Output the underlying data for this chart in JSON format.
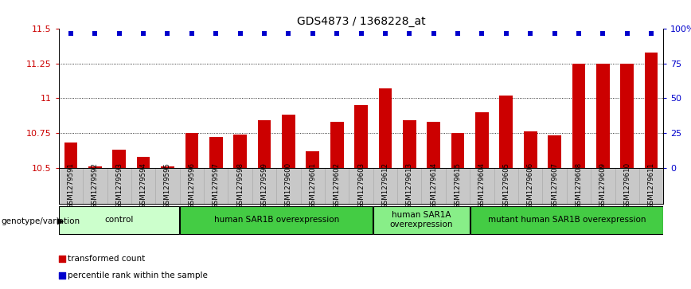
{
  "title": "GDS4873 / 1368228_at",
  "samples": [
    "GSM1279591",
    "GSM1279592",
    "GSM1279593",
    "GSM1279594",
    "GSM1279595",
    "GSM1279596",
    "GSM1279597",
    "GSM1279598",
    "GSM1279599",
    "GSM1279600",
    "GSM1279601",
    "GSM1279602",
    "GSM1279603",
    "GSM1279612",
    "GSM1279613",
    "GSM1279614",
    "GSM1279615",
    "GSM1279604",
    "GSM1279605",
    "GSM1279606",
    "GSM1279607",
    "GSM1279608",
    "GSM1279609",
    "GSM1279610",
    "GSM1279611"
  ],
  "bar_values": [
    10.68,
    10.51,
    10.63,
    10.58,
    10.51,
    10.75,
    10.72,
    10.74,
    10.84,
    10.88,
    10.62,
    10.83,
    10.95,
    11.07,
    10.84,
    10.83,
    10.75,
    10.9,
    11.02,
    10.76,
    10.73,
    11.25,
    11.25,
    11.25,
    11.33
  ],
  "percentile_values": [
    97,
    97,
    97,
    97,
    97,
    97,
    97,
    97,
    97,
    97,
    97,
    97,
    97,
    97,
    97,
    97,
    97,
    97,
    97,
    97,
    97,
    97,
    97,
    97,
    97
  ],
  "groups": [
    {
      "label": "control",
      "start": 0,
      "end": 5,
      "color": "#ccffcc"
    },
    {
      "label": "human SAR1B overexpression",
      "start": 5,
      "end": 13,
      "color": "#44cc44"
    },
    {
      "label": "human SAR1A\noverexpression",
      "start": 13,
      "end": 17,
      "color": "#88ee88"
    },
    {
      "label": "mutant human SAR1B overexpression",
      "start": 17,
      "end": 25,
      "color": "#44cc44"
    }
  ],
  "ylim": [
    10.5,
    11.5
  ],
  "yticks": [
    10.5,
    10.75,
    11.0,
    11.25,
    11.5
  ],
  "ytick_labels": [
    "10.5",
    "10.75",
    "11",
    "11.25",
    "11.5"
  ],
  "right_yticks": [
    0,
    25,
    50,
    75,
    100
  ],
  "right_ytick_labels": [
    "0",
    "25",
    "50",
    "75",
    "100%"
  ],
  "bar_color": "#cc0000",
  "dot_color": "#0000cc",
  "title_fontsize": 10,
  "axis_label_color_left": "#cc0000",
  "axis_label_color_right": "#0000cc",
  "tick_bg_color": "#c8c8c8",
  "group_border_color": "#000000"
}
